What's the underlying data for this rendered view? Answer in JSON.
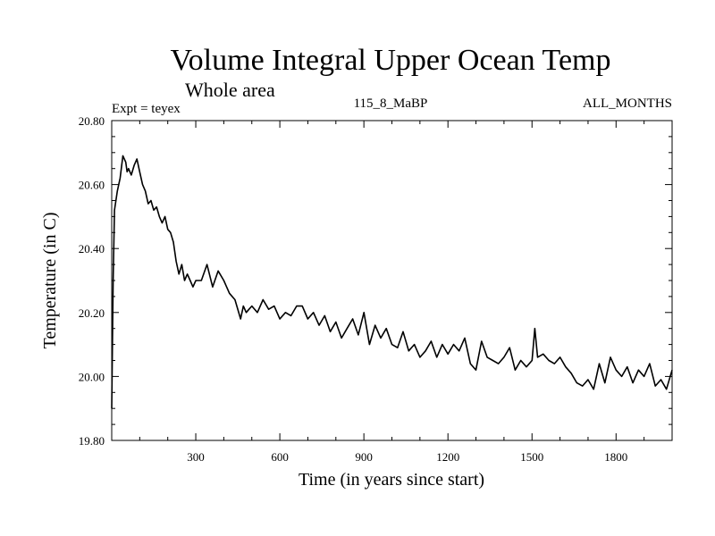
{
  "chart_data": {
    "type": "line",
    "title": "Volume Integral Upper Ocean Temp",
    "subtitle": "Whole area",
    "experiment_label": "Expt = teyex",
    "run_label": "115_8_MaBP",
    "months_label": "ALL_MONTHS",
    "xlabel": "Time (in years since start)",
    "ylabel": "Temperature (in C)",
    "xlim": [
      0,
      2000
    ],
    "ylim": [
      19.8,
      20.8
    ],
    "x_ticks": [
      300,
      600,
      900,
      1200,
      1500,
      1800
    ],
    "x_tick_labels": [
      "300",
      "600",
      "900",
      "1200",
      "1500",
      "1800"
    ],
    "y_ticks": [
      19.8,
      20.0,
      20.2,
      20.4,
      20.6,
      20.8
    ],
    "y_tick_labels": [
      "19.80",
      "20.00",
      "20.20",
      "20.40",
      "20.60",
      "20.80"
    ],
    "grid": false,
    "series": [
      {
        "name": "Volume Integral Upper Ocean Temp",
        "x": [
          0,
          2,
          5,
          10,
          15,
          20,
          30,
          40,
          50,
          55,
          60,
          70,
          80,
          90,
          100,
          110,
          120,
          130,
          140,
          150,
          160,
          170,
          180,
          190,
          200,
          210,
          220,
          230,
          240,
          250,
          260,
          270,
          280,
          290,
          300,
          320,
          340,
          360,
          380,
          400,
          420,
          440,
          460,
          470,
          480,
          490,
          500,
          520,
          540,
          560,
          580,
          600,
          620,
          640,
          660,
          680,
          700,
          720,
          740,
          760,
          780,
          800,
          820,
          840,
          860,
          880,
          900,
          920,
          940,
          960,
          980,
          1000,
          1020,
          1040,
          1060,
          1080,
          1100,
          1120,
          1140,
          1160,
          1180,
          1200,
          1220,
          1240,
          1260,
          1280,
          1300,
          1320,
          1340,
          1360,
          1380,
          1400,
          1420,
          1440,
          1460,
          1480,
          1500,
          1510,
          1520,
          1540,
          1560,
          1580,
          1600,
          1620,
          1640,
          1660,
          1680,
          1700,
          1720,
          1740,
          1760,
          1780,
          1800,
          1820,
          1840,
          1860,
          1880,
          1900,
          1920,
          1940,
          1960,
          1980,
          2000
        ],
        "values": [
          19.9,
          20.05,
          20.3,
          20.52,
          20.55,
          20.58,
          20.62,
          20.69,
          20.67,
          20.64,
          20.65,
          20.63,
          20.66,
          20.68,
          20.64,
          20.6,
          20.58,
          20.54,
          20.55,
          20.52,
          20.53,
          20.5,
          20.48,
          20.5,
          20.46,
          20.45,
          20.42,
          20.36,
          20.32,
          20.35,
          20.3,
          20.32,
          20.3,
          20.28,
          20.3,
          20.3,
          20.35,
          20.28,
          20.33,
          20.3,
          20.26,
          20.24,
          20.18,
          20.22,
          20.2,
          20.21,
          20.22,
          20.2,
          20.24,
          20.21,
          20.22,
          20.18,
          20.2,
          20.19,
          20.22,
          20.22,
          20.18,
          20.2,
          20.16,
          20.19,
          20.14,
          20.17,
          20.12,
          20.15,
          20.18,
          20.13,
          20.2,
          20.1,
          20.16,
          20.12,
          20.15,
          20.1,
          20.09,
          20.14,
          20.08,
          20.1,
          20.06,
          20.08,
          20.11,
          20.06,
          20.1,
          20.07,
          20.1,
          20.08,
          20.12,
          20.04,
          20.02,
          20.11,
          20.06,
          20.05,
          20.04,
          20.06,
          20.09,
          20.02,
          20.05,
          20.03,
          20.05,
          20.15,
          20.06,
          20.07,
          20.05,
          20.04,
          20.06,
          20.03,
          20.01,
          19.98,
          19.97,
          19.99,
          19.96,
          20.04,
          19.98,
          20.06,
          20.02,
          20.0,
          20.03,
          19.98,
          20.02,
          20.0,
          20.04,
          19.97,
          19.99,
          19.96,
          20.02
        ]
      }
    ]
  }
}
